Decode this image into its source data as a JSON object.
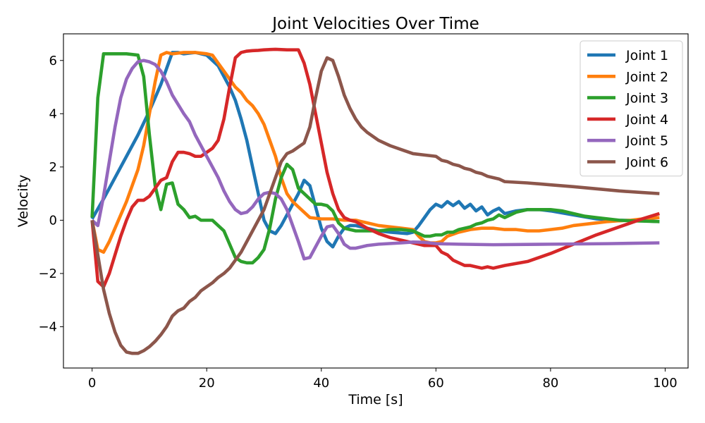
{
  "chart_data": {
    "type": "line",
    "title": "Joint Velocities Over Time",
    "xlabel": "Time [s]",
    "ylabel": "Velocity",
    "xlim": [
      -5,
      104
    ],
    "ylim": [
      -5.55,
      7.0
    ],
    "xticks": [
      0,
      20,
      40,
      60,
      80,
      100
    ],
    "yticks": [
      -4,
      -2,
      0,
      2,
      4,
      6
    ],
    "xtick_labels": [
      "0",
      "20",
      "40",
      "60",
      "80",
      "100"
    ],
    "ytick_labels": [
      "−4",
      "−2",
      "0",
      "2",
      "4",
      "6"
    ],
    "grid": false,
    "legend_position": "top-right",
    "series": [
      {
        "name": "Joint 1",
        "color": "#1f77b4",
        "x": [
          0,
          2,
          4,
          6,
          8,
          10,
          12,
          13,
          14,
          15,
          16,
          18,
          20,
          22,
          24,
          25,
          26,
          27,
          28,
          29,
          30,
          31,
          32,
          33,
          34,
          35,
          36,
          37,
          38,
          39,
          40,
          41,
          42,
          43,
          44,
          45,
          46,
          48,
          50,
          52,
          55,
          56,
          57,
          58,
          59,
          60,
          61,
          62,
          63,
          64,
          65,
          66,
          67,
          68,
          69,
          70,
          71,
          72,
          74,
          76,
          78,
          80,
          84,
          88,
          92,
          96,
          99
        ],
        "y": [
          0.05,
          0.8,
          1.6,
          2.4,
          3.2,
          4.1,
          5.1,
          5.7,
          6.3,
          6.3,
          6.25,
          6.3,
          6.2,
          5.8,
          5.0,
          4.5,
          3.8,
          3.0,
          2.0,
          1.0,
          0.0,
          -0.4,
          -0.5,
          -0.2,
          0.2,
          0.6,
          1.0,
          1.5,
          1.3,
          0.5,
          -0.3,
          -0.8,
          -1.0,
          -0.6,
          -0.3,
          -0.2,
          -0.2,
          -0.3,
          -0.4,
          -0.45,
          -0.5,
          -0.45,
          -0.2,
          0.1,
          0.4,
          0.6,
          0.5,
          0.7,
          0.55,
          0.7,
          0.45,
          0.6,
          0.35,
          0.5,
          0.2,
          0.35,
          0.45,
          0.25,
          0.35,
          0.4,
          0.4,
          0.35,
          0.2,
          0.05,
          0.0,
          -0.02,
          -0.05
        ]
      },
      {
        "name": "Joint 2",
        "color": "#ff7f0e",
        "x": [
          0,
          1,
          2,
          3,
          4,
          5,
          6,
          7,
          8,
          9,
          10,
          11,
          12,
          13,
          14,
          16,
          18,
          20,
          21,
          22,
          23,
          24,
          25,
          26,
          27,
          28,
          29,
          30,
          31,
          32,
          33,
          34,
          35,
          36,
          37,
          38,
          40,
          42,
          44,
          46,
          48,
          50,
          52,
          54,
          56,
          57,
          58,
          59,
          60,
          61,
          62,
          64,
          66,
          68,
          70,
          72,
          74,
          76,
          78,
          80,
          82,
          84,
          86,
          88,
          90,
          92,
          94,
          96,
          99
        ],
        "y": [
          0.0,
          -1.1,
          -1.2,
          -0.8,
          -0.3,
          0.2,
          0.7,
          1.3,
          1.9,
          2.8,
          4.0,
          5.2,
          6.2,
          6.3,
          6.25,
          6.3,
          6.3,
          6.25,
          6.2,
          5.9,
          5.6,
          5.3,
          5.0,
          4.8,
          4.5,
          4.3,
          4.0,
          3.6,
          3.0,
          2.4,
          1.6,
          1.0,
          0.7,
          0.5,
          0.3,
          0.1,
          0.05,
          0.05,
          0.0,
          0.0,
          -0.1,
          -0.2,
          -0.25,
          -0.3,
          -0.35,
          -0.6,
          -0.8,
          -0.85,
          -0.85,
          -0.8,
          -0.6,
          -0.45,
          -0.35,
          -0.3,
          -0.3,
          -0.35,
          -0.35,
          -0.4,
          -0.4,
          -0.35,
          -0.3,
          -0.2,
          -0.15,
          -0.1,
          -0.05,
          -0.02,
          0.0,
          0.05,
          0.1
        ]
      },
      {
        "name": "Joint 3",
        "color": "#2ca02c",
        "x": [
          0,
          1,
          2,
          3,
          4,
          6,
          8,
          9,
          10,
          11,
          12,
          13,
          14,
          15,
          16,
          17,
          18,
          19,
          20,
          21,
          22,
          23,
          24,
          25,
          26,
          27,
          28,
          29,
          30,
          31,
          32,
          33,
          34,
          35,
          36,
          37,
          38,
          39,
          40,
          41,
          42,
          43,
          44,
          46,
          48,
          50,
          52,
          54,
          56,
          58,
          59,
          60,
          61,
          62,
          63,
          64,
          65,
          66,
          67,
          68,
          69,
          70,
          71,
          72,
          74,
          76,
          78,
          80,
          82,
          84,
          86,
          88,
          90,
          92,
          94,
          96,
          99
        ],
        "y": [
          0.1,
          4.6,
          6.25,
          6.25,
          6.25,
          6.25,
          6.2,
          5.4,
          3.2,
          1.3,
          0.4,
          1.35,
          1.4,
          0.6,
          0.4,
          0.1,
          0.15,
          0.0,
          0.0,
          0.0,
          -0.2,
          -0.4,
          -0.9,
          -1.4,
          -1.55,
          -1.6,
          -1.6,
          -1.4,
          -1.1,
          -0.3,
          0.8,
          1.6,
          2.1,
          1.9,
          1.2,
          1.0,
          0.8,
          0.6,
          0.6,
          0.55,
          0.35,
          -0.1,
          -0.3,
          -0.4,
          -0.4,
          -0.4,
          -0.35,
          -0.35,
          -0.4,
          -0.6,
          -0.6,
          -0.55,
          -0.55,
          -0.45,
          -0.45,
          -0.35,
          -0.3,
          -0.25,
          -0.15,
          -0.1,
          0.0,
          0.05,
          0.2,
          0.1,
          0.3,
          0.4,
          0.4,
          0.4,
          0.35,
          0.25,
          0.15,
          0.1,
          0.05,
          0.0,
          -0.02,
          -0.03,
          -0.05
        ]
      },
      {
        "name": "Joint 4",
        "color": "#d62728",
        "x": [
          0,
          1,
          2,
          3,
          4,
          5,
          6,
          7,
          8,
          9,
          10,
          11,
          12,
          13,
          14,
          15,
          16,
          17,
          18,
          19,
          20,
          21,
          22,
          23,
          24,
          25,
          26,
          27,
          28,
          29,
          30,
          32,
          34,
          35,
          36,
          37,
          38,
          39,
          40,
          41,
          42,
          43,
          44,
          45,
          46,
          48,
          50,
          52,
          54,
          56,
          58,
          60,
          61,
          62,
          63,
          64,
          65,
          66,
          67,
          68,
          69,
          70,
          71,
          72,
          76,
          80,
          84,
          88,
          92,
          96,
          99
        ],
        "y": [
          0.0,
          -2.3,
          -2.5,
          -2.0,
          -1.3,
          -0.6,
          0.0,
          0.5,
          0.75,
          0.75,
          0.9,
          1.2,
          1.5,
          1.6,
          2.2,
          2.55,
          2.55,
          2.5,
          2.4,
          2.4,
          2.55,
          2.7,
          3.0,
          3.8,
          5.0,
          6.1,
          6.3,
          6.35,
          6.37,
          6.38,
          6.4,
          6.42,
          6.4,
          6.4,
          6.4,
          5.9,
          5.1,
          4.0,
          2.9,
          1.8,
          1.0,
          0.4,
          0.1,
          0.0,
          -0.05,
          -0.3,
          -0.5,
          -0.65,
          -0.75,
          -0.85,
          -0.95,
          -0.95,
          -1.2,
          -1.3,
          -1.5,
          -1.6,
          -1.7,
          -1.7,
          -1.75,
          -1.8,
          -1.75,
          -1.8,
          -1.75,
          -1.7,
          -1.55,
          -1.25,
          -0.9,
          -0.55,
          -0.25,
          0.05,
          0.25
        ]
      },
      {
        "name": "Joint 5",
        "color": "#9467bd",
        "x": [
          0,
          1,
          2,
          3,
          4,
          5,
          6,
          7,
          8,
          9,
          10,
          11,
          12,
          13,
          14,
          15,
          16,
          17,
          18,
          19,
          20,
          21,
          22,
          23,
          24,
          25,
          26,
          27,
          28,
          29,
          30,
          31,
          32,
          33,
          34,
          35,
          36,
          37,
          38,
          39,
          40,
          41,
          42,
          43,
          44,
          45,
          46,
          48,
          50,
          54,
          56,
          58,
          60,
          64,
          70,
          80,
          90,
          99
        ],
        "y": [
          0.0,
          -0.2,
          0.9,
          2.2,
          3.5,
          4.6,
          5.3,
          5.7,
          5.95,
          6.0,
          5.95,
          5.85,
          5.6,
          5.2,
          4.7,
          4.35,
          4.0,
          3.7,
          3.2,
          2.8,
          2.4,
          2.0,
          1.6,
          1.1,
          0.7,
          0.4,
          0.25,
          0.3,
          0.5,
          0.8,
          1.0,
          1.05,
          1.0,
          0.8,
          0.4,
          -0.2,
          -0.8,
          -1.45,
          -1.4,
          -1.0,
          -0.6,
          -0.25,
          -0.2,
          -0.5,
          -0.9,
          -1.05,
          -1.05,
          -0.95,
          -0.9,
          -0.85,
          -0.82,
          -0.83,
          -0.88,
          -0.9,
          -0.92,
          -0.9,
          -0.88,
          -0.85
        ]
      },
      {
        "name": "Joint 6",
        "color": "#8c564b",
        "x": [
          0,
          1,
          2,
          3,
          4,
          5,
          6,
          7,
          8,
          9,
          10,
          11,
          12,
          13,
          14,
          15,
          16,
          17,
          18,
          19,
          20,
          21,
          22,
          23,
          24,
          25,
          26,
          27,
          28,
          29,
          30,
          31,
          32,
          33,
          34,
          35,
          36,
          37,
          38,
          39,
          40,
          41,
          42,
          43,
          44,
          45,
          46,
          47,
          48,
          50,
          52,
          54,
          56,
          58,
          60,
          61,
          62,
          63,
          64,
          65,
          66,
          67,
          68,
          69,
          70,
          71,
          72,
          76,
          80,
          84,
          88,
          92,
          96,
          99
        ],
        "y": [
          0.0,
          -1.3,
          -2.6,
          -3.5,
          -4.2,
          -4.7,
          -4.95,
          -5.0,
          -5.0,
          -4.9,
          -4.75,
          -4.55,
          -4.3,
          -4.0,
          -3.6,
          -3.4,
          -3.3,
          -3.05,
          -2.9,
          -2.65,
          -2.5,
          -2.35,
          -2.15,
          -2.0,
          -1.8,
          -1.5,
          -1.2,
          -0.8,
          -0.4,
          0.0,
          0.4,
          1.0,
          1.6,
          2.2,
          2.5,
          2.6,
          2.75,
          2.9,
          3.5,
          4.6,
          5.6,
          6.1,
          6.0,
          5.4,
          4.7,
          4.2,
          3.8,
          3.5,
          3.3,
          3.0,
          2.8,
          2.65,
          2.5,
          2.45,
          2.4,
          2.25,
          2.2,
          2.1,
          2.05,
          1.95,
          1.9,
          1.8,
          1.75,
          1.65,
          1.6,
          1.55,
          1.45,
          1.4,
          1.33,
          1.26,
          1.18,
          1.1,
          1.04,
          1.0
        ]
      }
    ]
  }
}
